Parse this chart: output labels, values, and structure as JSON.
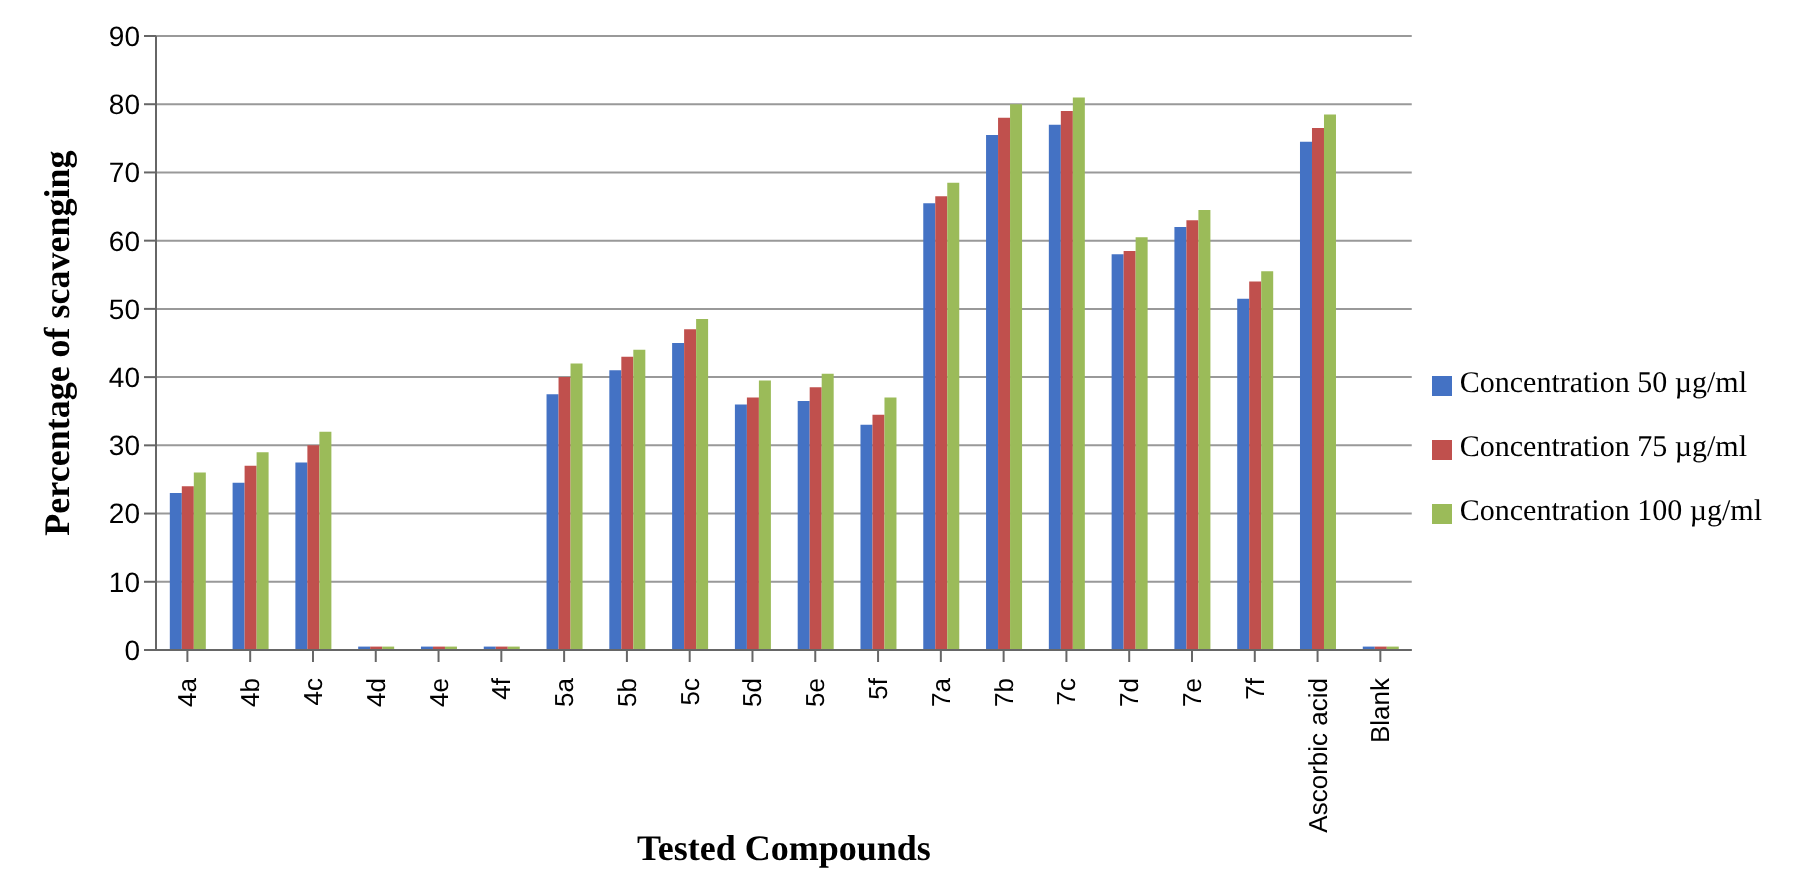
{
  "chart_data": {
    "type": "bar",
    "xlabel": "Tested Compounds",
    "ylabel": "Percentage of scavenging",
    "categories": [
      "4a",
      "4b",
      "4c",
      "4d",
      "4e",
      "4f",
      "5a",
      "5b",
      "5c",
      "5d",
      "5e",
      "5f",
      "7a",
      "7b",
      "7c",
      "7d",
      "7e",
      "7f",
      "Ascorbic acid",
      "Blank"
    ],
    "series": [
      {
        "name": "Concentration 50 µg/ml",
        "color": "#4472c4",
        "values": [
          23,
          24.5,
          27.5,
          0.5,
          0.5,
          0.5,
          37.5,
          41,
          45,
          36,
          36.5,
          33,
          65.5,
          75.5,
          77,
          58,
          62,
          51.5,
          74.5,
          0.5
        ]
      },
      {
        "name": "Concentration 75 µg/ml",
        "color": "#c0504d",
        "values": [
          24,
          27,
          30,
          0.5,
          0.5,
          0.5,
          40,
          43,
          47,
          37,
          38.5,
          34.5,
          66.5,
          78,
          79,
          58.5,
          63,
          54,
          76.5,
          0.5
        ]
      },
      {
        "name": "Concentration 100 µg/ml",
        "color": "#9bbb59",
        "values": [
          26,
          29,
          32,
          0.5,
          0.5,
          0.5,
          42,
          44,
          48.5,
          39.5,
          40.5,
          37,
          68.5,
          80,
          81,
          60.5,
          64.5,
          55.5,
          78.5,
          0.5
        ]
      }
    ],
    "ylim": [
      0,
      90
    ],
    "yticks": [
      0,
      10,
      20,
      30,
      40,
      50,
      60,
      70,
      80,
      90
    ],
    "grid": "y",
    "legend": "right"
  }
}
